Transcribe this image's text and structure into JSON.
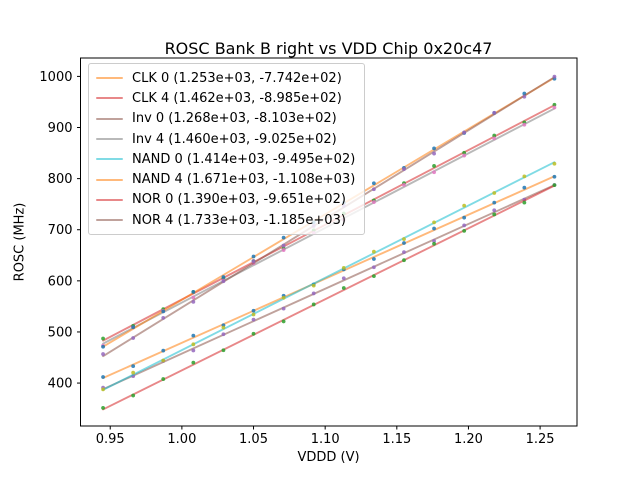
{
  "chart_data": {
    "type": "scatter",
    "title": "ROSC Bank B right vs VDD Chip 0x20c47",
    "xlabel": "VDDD (V)",
    "ylabel": "ROSC (MHz)",
    "xlim": [
      0.92925,
      1.27575
    ],
    "ylim": [
      316,
      1036
    ],
    "xticks": [
      0.95,
      1.0,
      1.05,
      1.1,
      1.15,
      1.2,
      1.25
    ],
    "xtick_labels": [
      "0.95",
      "1.00",
      "1.05",
      "1.10",
      "1.15",
      "1.20",
      "1.25"
    ],
    "yticks": [
      400,
      500,
      600,
      700,
      800,
      900,
      1000
    ],
    "ytick_labels": [
      "400",
      "500",
      "600",
      "700",
      "800",
      "900",
      "1000"
    ],
    "grid": false,
    "legend_position": "upper left",
    "x": [
      0.945,
      0.966,
      0.987,
      1.008,
      1.029,
      1.05,
      1.071,
      1.092,
      1.113,
      1.134,
      1.155,
      1.176,
      1.197,
      1.218,
      1.239,
      1.26
    ],
    "series": [
      {
        "name": "CLK 0",
        "label": "CLK 0 (1.253e+03, -7.742e+02)",
        "slope": 1253,
        "intercept": -774.2,
        "line_color": "rgba(255,127,14,0.55)",
        "marker_color": "#1f77b4",
        "scatter_y": [
          411.9,
          433.2,
          463.5,
          492.8,
          513.1,
          541.5,
          570.8,
          593.1,
          622.4,
          642.7,
          674.0,
          702.3,
          723.6,
          753.0,
          782.3,
          803.6
        ]
      },
      {
        "name": "CLK 4",
        "label": "CLK 4 (1.462e+03, -8.985e+02)",
        "slope": 1462,
        "intercept": -898.5,
        "line_color": "rgba(214,39,40,0.55)",
        "marker_color": "#2ca02c",
        "scatter_y": [
          487.1,
          511.8,
          544.5,
          578.2,
          604.9,
          638.6,
          663.3,
          699.0,
          731.7,
          757.4,
          791.1,
          824.8,
          850.5,
          884.2,
          909.9,
          944.6
        ]
      },
      {
        "name": "Inv 0",
        "label": "Inv 0 (1.268e+03, -8.103e+02)",
        "slope": 1268,
        "intercept": -810.3,
        "line_color": "rgba(140,86,75,0.55)",
        "marker_color": "#9467bd",
        "scatter_y": [
          391.0,
          413.6,
          443.2,
          463.8,
          495.5,
          524.1,
          545.7,
          575.4,
          605.0,
          626.6,
          656.2,
          677.9,
          708.5,
          738.1,
          758.8,
          787.4
        ]
      },
      {
        "name": "Inv 4",
        "label": "Inv 4 (1.460e+03, -9.025e+02)",
        "slope": 1460,
        "intercept": -902.5,
        "line_color": "rgba(127,127,127,0.55)",
        "marker_color": "#e377c2",
        "scatter_y": [
          473.2,
          508.9,
          541.5,
          567.2,
          600.8,
          634.5,
          660.2,
          693.8,
          719.5,
          754.1,
          787.8,
          812.5,
          845.1,
          878.8,
          905.4,
          939.1
        ]
      },
      {
        "name": "NAND 0",
        "label": "NAND 0 (1.414e+03, -9.495e+02)",
        "slope": 1414,
        "intercept": -949.5,
        "line_color": "rgba(23,190,207,0.55)",
        "marker_color": "#bcbd22",
        "scatter_y": [
          387.7,
          420.4,
          444.1,
          475.8,
          508.5,
          534.2,
          566.9,
          590.6,
          625.3,
          657.0,
          681.7,
          714.4,
          747.1,
          771.8,
          804.4,
          829.1
        ]
      },
      {
        "name": "NAND 4",
        "label": "NAND 4 (1.671e+03, -1.108e+03)",
        "slope": 1671,
        "intercept": -1108,
        "line_color": "rgba(255,127,14,0.55)",
        "marker_color": "#1f77b4",
        "scatter_y": [
          471.1,
          509.2,
          540.3,
          578.4,
          607.5,
          647.6,
          684.6,
          714.7,
          752.8,
          790.9,
          821.0,
          859.1,
          889.2,
          928.3,
          966.4,
          995.5
        ]
      },
      {
        "name": "NOR 0",
        "label": "NOR 0 (1.390e+03, -9.651e+02)",
        "slope": 1390,
        "intercept": -965.1,
        "line_color": "rgba(214,39,40,0.55)",
        "marker_color": "#2ca02c",
        "scatter_y": [
          351.5,
          375.6,
          407.8,
          440.0,
          464.2,
          496.4,
          520.6,
          553.8,
          586.0,
          609.2,
          640.4,
          672.5,
          697.7,
          729.9,
          753.1,
          787.3
        ]
      },
      {
        "name": "NOR 4",
        "label": "NOR 4 (1.733e+03, -1.185e+03)",
        "slope": 1733,
        "intercept": -1185,
        "line_color": "rgba(140,86,75,0.55)",
        "marker_color": "#9467bd",
        "scatter_y": [
          456.7,
          488.1,
          527.5,
          558.9,
          599.3,
          638.7,
          669.0,
          707.4,
          746.8,
          779.2,
          818.6,
          849.0,
          890.4,
          928.8,
          960.2,
          999.6
        ]
      }
    ]
  }
}
